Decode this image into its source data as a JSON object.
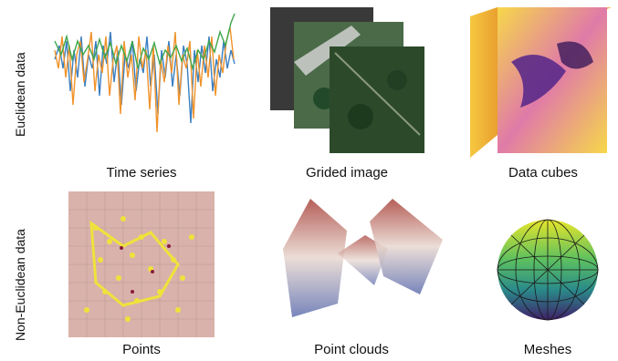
{
  "rows": {
    "euclidean": "Euclidean data",
    "non_euclidean": "Non-Euclidean data"
  },
  "captions": {
    "time_series": "Time series",
    "grided_image": "Grided image",
    "data_cubes": "Data cubes",
    "points": "Points",
    "point_clouds": "Point clouds",
    "meshes": "Meshes"
  },
  "colors": {
    "series_blue": "#3a7fc1",
    "series_orange": "#f0932b",
    "series_green": "#3da64a",
    "points_yellow": "#f0e23a",
    "points_bg": "#d9b2ab",
    "cube_yellow": "#f6d84a",
    "cube_purple": "#5a2a8a",
    "roof_red": "#a8423a",
    "mesh_yellow": "#e6e52a",
    "mesh_purple": "#40206a"
  }
}
